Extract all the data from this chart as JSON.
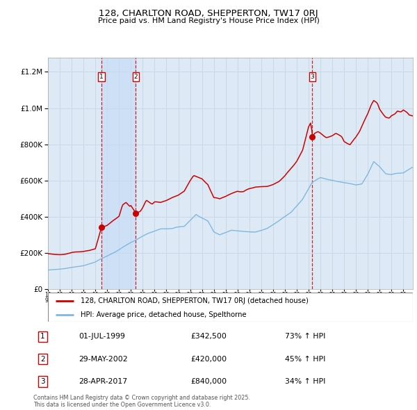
{
  "title1": "128, CHARLTON ROAD, SHEPPERTON, TW17 0RJ",
  "title2": "Price paid vs. HM Land Registry's House Price Index (HPI)",
  "legend_red": "128, CHARLTON ROAD, SHEPPERTON, TW17 0RJ (detached house)",
  "legend_blue": "HPI: Average price, detached house, Spelthorne",
  "footer": "Contains HM Land Registry data © Crown copyright and database right 2025.\nThis data is licensed under the Open Government Licence v3.0.",
  "sales": [
    {
      "num": 1,
      "date": "01-JUL-1999",
      "price": 342500,
      "pct": "73%",
      "dir": "↑"
    },
    {
      "num": 2,
      "date": "29-MAY-2002",
      "price": 420000,
      "pct": "45%",
      "dir": "↑"
    },
    {
      "num": 3,
      "date": "28-APR-2017",
      "price": 840000,
      "pct": "34%",
      "dir": "↑"
    }
  ],
  "sale_dates_decimal": [
    1999.5,
    2002.41,
    2017.32
  ],
  "sale_prices": [
    342500,
    420000,
    840000
  ],
  "red_color": "#cc0000",
  "blue_color": "#7eb8e0",
  "dot_color": "#cc0000",
  "vline_color": "#cc0000",
  "grid_color": "#c8d8e8",
  "plot_bg": "#ddeaf5",
  "ylim": [
    0,
    1280000
  ],
  "xlim_start": 1995.0,
  "xlim_end": 2025.8,
  "blue_kp": [
    [
      1995.0,
      105000
    ],
    [
      1996.0,
      112000
    ],
    [
      1997.0,
      122000
    ],
    [
      1998.0,
      138000
    ],
    [
      1999.0,
      158000
    ],
    [
      2000.0,
      190000
    ],
    [
      2001.0,
      228000
    ],
    [
      2002.0,
      265000
    ],
    [
      2002.5,
      278000
    ],
    [
      2003.5,
      310000
    ],
    [
      2004.5,
      330000
    ],
    [
      2005.5,
      330000
    ],
    [
      2006.5,
      348000
    ],
    [
      2007.5,
      425000
    ],
    [
      2008.5,
      385000
    ],
    [
      2009.0,
      325000
    ],
    [
      2009.5,
      310000
    ],
    [
      2010.5,
      335000
    ],
    [
      2011.5,
      330000
    ],
    [
      2012.5,
      330000
    ],
    [
      2013.5,
      350000
    ],
    [
      2014.5,
      390000
    ],
    [
      2015.5,
      435000
    ],
    [
      2016.5,
      510000
    ],
    [
      2017.3,
      600000
    ],
    [
      2018.0,
      625000
    ],
    [
      2019.0,
      618000
    ],
    [
      2020.0,
      600000
    ],
    [
      2021.0,
      590000
    ],
    [
      2021.5,
      595000
    ],
    [
      2022.0,
      650000
    ],
    [
      2022.5,
      720000
    ],
    [
      2023.0,
      695000
    ],
    [
      2023.5,
      660000
    ],
    [
      2024.0,
      655000
    ],
    [
      2024.5,
      660000
    ],
    [
      2025.0,
      665000
    ],
    [
      2025.8,
      700000
    ]
  ],
  "red_kp": [
    [
      1995.0,
      195000
    ],
    [
      1996.0,
      200000
    ],
    [
      1997.0,
      205000
    ],
    [
      1998.0,
      212000
    ],
    [
      1998.5,
      218000
    ],
    [
      1999.0,
      230000
    ],
    [
      1999.5,
      342500
    ],
    [
      2000.0,
      355000
    ],
    [
      2000.5,
      380000
    ],
    [
      2001.0,
      400000
    ],
    [
      2001.3,
      460000
    ],
    [
      2001.6,
      475000
    ],
    [
      2001.9,
      455000
    ],
    [
      2002.0,
      460000
    ],
    [
      2002.41,
      420000
    ],
    [
      2002.8,
      430000
    ],
    [
      2003.0,
      450000
    ],
    [
      2003.3,
      490000
    ],
    [
      2003.5,
      480000
    ],
    [
      2003.8,
      465000
    ],
    [
      2004.0,
      475000
    ],
    [
      2004.5,
      470000
    ],
    [
      2005.0,
      480000
    ],
    [
      2005.5,
      495000
    ],
    [
      2006.0,
      505000
    ],
    [
      2006.5,
      525000
    ],
    [
      2007.0,
      585000
    ],
    [
      2007.3,
      615000
    ],
    [
      2007.5,
      610000
    ],
    [
      2008.0,
      600000
    ],
    [
      2008.5,
      570000
    ],
    [
      2009.0,
      490000
    ],
    [
      2009.5,
      480000
    ],
    [
      2010.0,
      495000
    ],
    [
      2010.5,
      515000
    ],
    [
      2011.0,
      535000
    ],
    [
      2011.5,
      535000
    ],
    [
      2012.0,
      550000
    ],
    [
      2012.5,
      565000
    ],
    [
      2013.0,
      570000
    ],
    [
      2013.5,
      578000
    ],
    [
      2014.0,
      590000
    ],
    [
      2014.5,
      608000
    ],
    [
      2015.0,
      638000
    ],
    [
      2015.5,
      678000
    ],
    [
      2016.0,
      720000
    ],
    [
      2016.5,
      778000
    ],
    [
      2017.0,
      898000
    ],
    [
      2017.2,
      920000
    ],
    [
      2017.32,
      840000
    ],
    [
      2017.5,
      855000
    ],
    [
      2017.8,
      865000
    ],
    [
      2018.0,
      858000
    ],
    [
      2018.3,
      845000
    ],
    [
      2018.5,
      838000
    ],
    [
      2019.0,
      845000
    ],
    [
      2019.3,
      855000
    ],
    [
      2019.8,
      840000
    ],
    [
      2020.0,
      815000
    ],
    [
      2020.3,
      805000
    ],
    [
      2020.5,
      800000
    ],
    [
      2021.0,
      845000
    ],
    [
      2021.3,
      880000
    ],
    [
      2021.7,
      940000
    ],
    [
      2022.0,
      980000
    ],
    [
      2022.3,
      1030000
    ],
    [
      2022.5,
      1055000
    ],
    [
      2022.8,
      1045000
    ],
    [
      2023.0,
      1010000
    ],
    [
      2023.3,
      980000
    ],
    [
      2023.5,
      965000
    ],
    [
      2023.8,
      960000
    ],
    [
      2024.0,
      975000
    ],
    [
      2024.3,
      985000
    ],
    [
      2024.5,
      1000000
    ],
    [
      2024.8,
      995000
    ],
    [
      2025.0,
      1005000
    ],
    [
      2025.3,
      990000
    ],
    [
      2025.5,
      975000
    ],
    [
      2025.8,
      970000
    ]
  ]
}
